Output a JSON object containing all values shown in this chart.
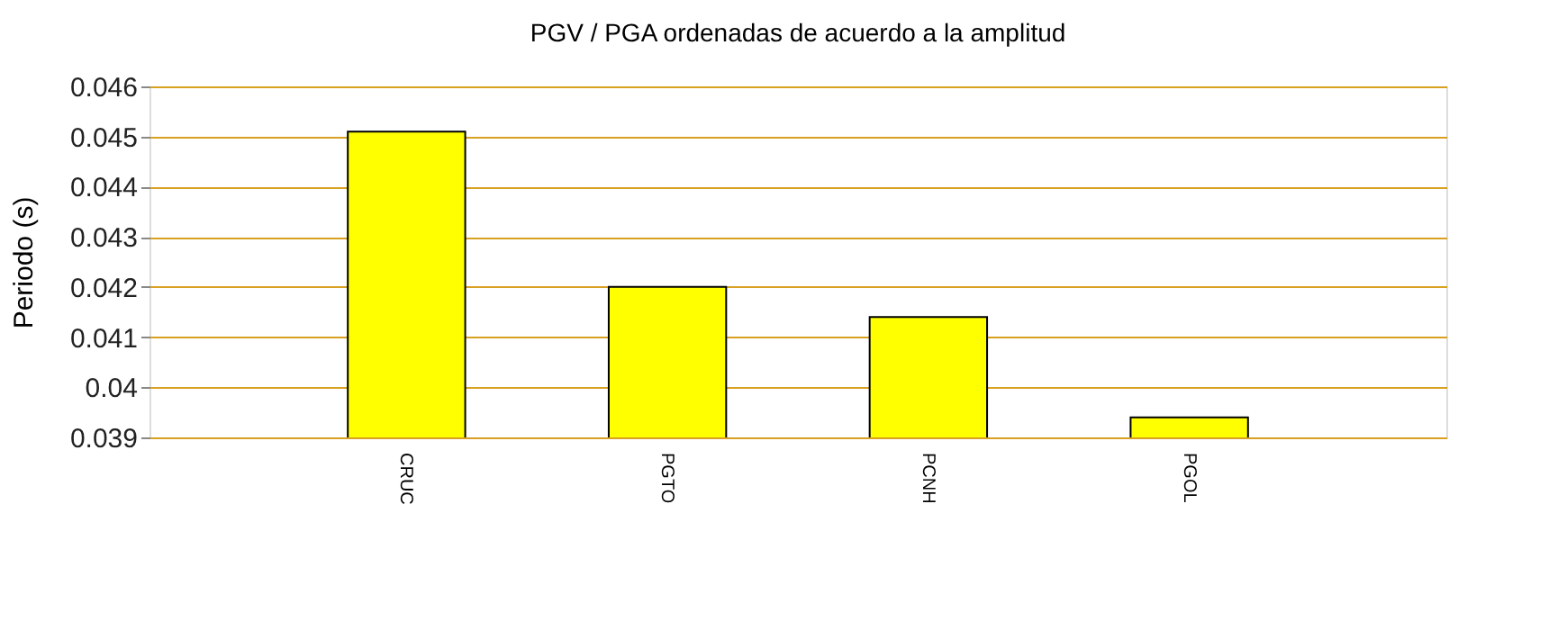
{
  "chart_data": {
    "type": "bar",
    "title": "PGV / PGA ordenadas de acuerdo a la amplitud",
    "ylabel": "Periodo (s)",
    "categories": [
      "CRUC",
      "PGTO",
      "PCNH",
      "PGOL"
    ],
    "values": [
      0.0451,
      0.042,
      0.0414,
      0.0394
    ],
    "color": "#ffff00",
    "ylim": [
      0.039,
      0.046
    ],
    "yticks": [
      0.039,
      {
        "value": 0.04,
        "label": "0.04"
      },
      0.041,
      0.042,
      0.043,
      0.044,
      0.045,
      0.046
    ],
    "grid": true
  }
}
